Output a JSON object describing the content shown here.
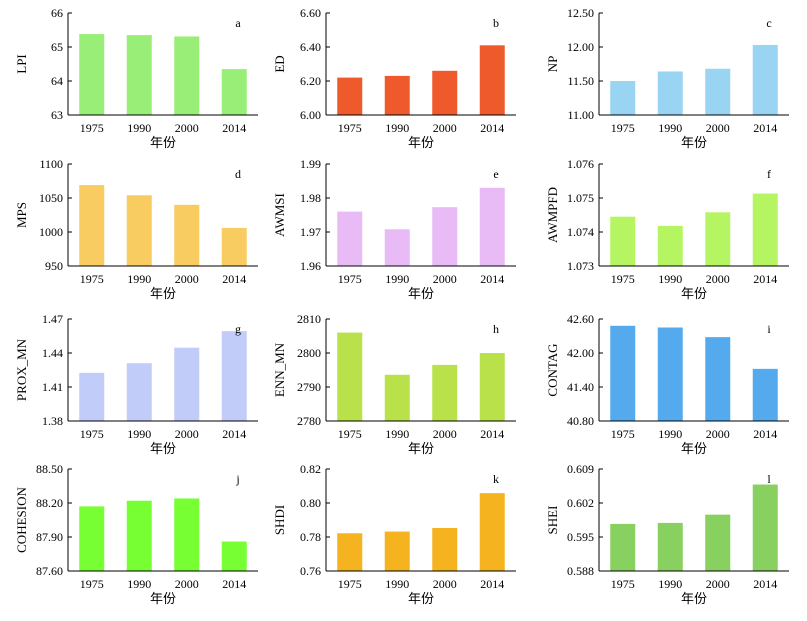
{
  "chart_data": [
    {
      "type": "bar",
      "letter": "a",
      "ylabel": "LPI",
      "xlabel": "年份",
      "categories": [
        "1975",
        "1990",
        "2000",
        "2014"
      ],
      "values": [
        65.38,
        65.35,
        65.31,
        64.35
      ],
      "ylim": [
        63,
        66
      ],
      "yticks": [
        "63",
        "64",
        "65",
        "66"
      ],
      "color": "#99ee77"
    },
    {
      "type": "bar",
      "letter": "b",
      "ylabel": "ED",
      "xlabel": "年份",
      "categories": [
        "1975",
        "1990",
        "2000",
        "2014"
      ],
      "values": [
        6.22,
        6.23,
        6.26,
        6.41
      ],
      "ylim": [
        6.0,
        6.6
      ],
      "yticks": [
        "6.00",
        "6.20",
        "6.40",
        "6.60"
      ],
      "color": "#ee5a2c"
    },
    {
      "type": "bar",
      "letter": "c",
      "ylabel": "NP",
      "xlabel": "年份",
      "categories": [
        "1975",
        "1990",
        "2000",
        "2014"
      ],
      "values": [
        11.5,
        11.64,
        11.68,
        12.03
      ],
      "ylim": [
        11.0,
        12.5
      ],
      "yticks": [
        "11.00",
        "11.50",
        "12.00",
        "12.50"
      ],
      "color": "#99d4f2"
    },
    {
      "type": "bar",
      "letter": "d",
      "ylabel": "MPS",
      "xlabel": "年份",
      "categories": [
        "1975",
        "1990",
        "2000",
        "2014"
      ],
      "values": [
        1069,
        1054,
        1040,
        1006
      ],
      "ylim": [
        950,
        1100
      ],
      "yticks": [
        "950",
        "1000",
        "1050",
        "1100"
      ],
      "color": "#f8cc60"
    },
    {
      "type": "bar",
      "letter": "e",
      "ylabel": "AWMSI",
      "xlabel": "年份",
      "categories": [
        "1975",
        "1990",
        "2000",
        "2014"
      ],
      "values": [
        1.976,
        1.9708,
        1.9773,
        1.983
      ],
      "ylim": [
        1.96,
        1.99
      ],
      "yticks": [
        "1.96",
        "1.97",
        "1.98",
        "1.99"
      ],
      "color": "#e8bbf6"
    },
    {
      "type": "bar",
      "letter": "f",
      "ylabel": "AWMPFD",
      "xlabel": "年份",
      "categories": [
        "1975",
        "1990",
        "2000",
        "2014"
      ],
      "values": [
        1.07445,
        1.07418,
        1.07458,
        1.07513
      ],
      "ylim": [
        1.073,
        1.076
      ],
      "yticks": [
        "1.073",
        "1.074",
        "1.075",
        "1.076"
      ],
      "color": "#b6f562"
    },
    {
      "type": "bar",
      "letter": "g",
      "ylabel": "PROX_MN",
      "xlabel": "年份",
      "categories": [
        "1975",
        "1990",
        "2000",
        "2014"
      ],
      "values": [
        1.4225,
        1.431,
        1.4447,
        1.4593
      ],
      "ylim": [
        1.38,
        1.47
      ],
      "yticks": [
        "1.38",
        "1.41",
        "1.44",
        "1.47"
      ],
      "color": "#c2ccf8"
    },
    {
      "type": "bar",
      "letter": "h",
      "ylabel": "ENN_MN",
      "xlabel": "年份",
      "categories": [
        "1975",
        "1990",
        "2000",
        "2014"
      ],
      "values": [
        2806,
        2793.6,
        2796.5,
        2800
      ],
      "ylim": [
        2780,
        2810
      ],
      "yticks": [
        "2780",
        "2790",
        "2800",
        "2810"
      ],
      "color": "#b9e14a"
    },
    {
      "type": "bar",
      "letter": "i",
      "ylabel": "CONTAG",
      "xlabel": "年份",
      "categories": [
        "1975",
        "1990",
        "2000",
        "2014"
      ],
      "values": [
        42.48,
        42.45,
        42.28,
        41.72
      ],
      "ylim": [
        40.8,
        42.6
      ],
      "yticks": [
        "40.80",
        "41.40",
        "42.00",
        "42.60"
      ],
      "color": "#55aaee"
    },
    {
      "type": "bar",
      "letter": "j",
      "ylabel": "COHESION",
      "xlabel": "年份",
      "categories": [
        "1975",
        "1990",
        "2000",
        "2014"
      ],
      "values": [
        88.17,
        88.22,
        88.24,
        87.86
      ],
      "ylim": [
        87.6,
        88.5
      ],
      "yticks": [
        "87.60",
        "87.90",
        "88.20",
        "88.50"
      ],
      "color": "#77ff33"
    },
    {
      "type": "bar",
      "letter": "k",
      "ylabel": "SHDI",
      "xlabel": "年份",
      "categories": [
        "1975",
        "1990",
        "2000",
        "2014"
      ],
      "values": [
        0.7822,
        0.7832,
        0.7853,
        0.8058
      ],
      "ylim": [
        0.76,
        0.82
      ],
      "yticks": [
        "0.76",
        "0.78",
        "0.80",
        "0.82"
      ],
      "color": "#f5b41f"
    },
    {
      "type": "bar",
      "letter": "l",
      "ylabel": "SHEI",
      "xlabel": "年份",
      "categories": [
        "1975",
        "1990",
        "2000",
        "2014"
      ],
      "values": [
        0.5977,
        0.5979,
        0.5996,
        0.6058
      ],
      "ylim": [
        0.588,
        0.609
      ],
      "yticks": [
        "0.588",
        "0.595",
        "0.602",
        "0.609"
      ],
      "color": "#88d060"
    }
  ]
}
